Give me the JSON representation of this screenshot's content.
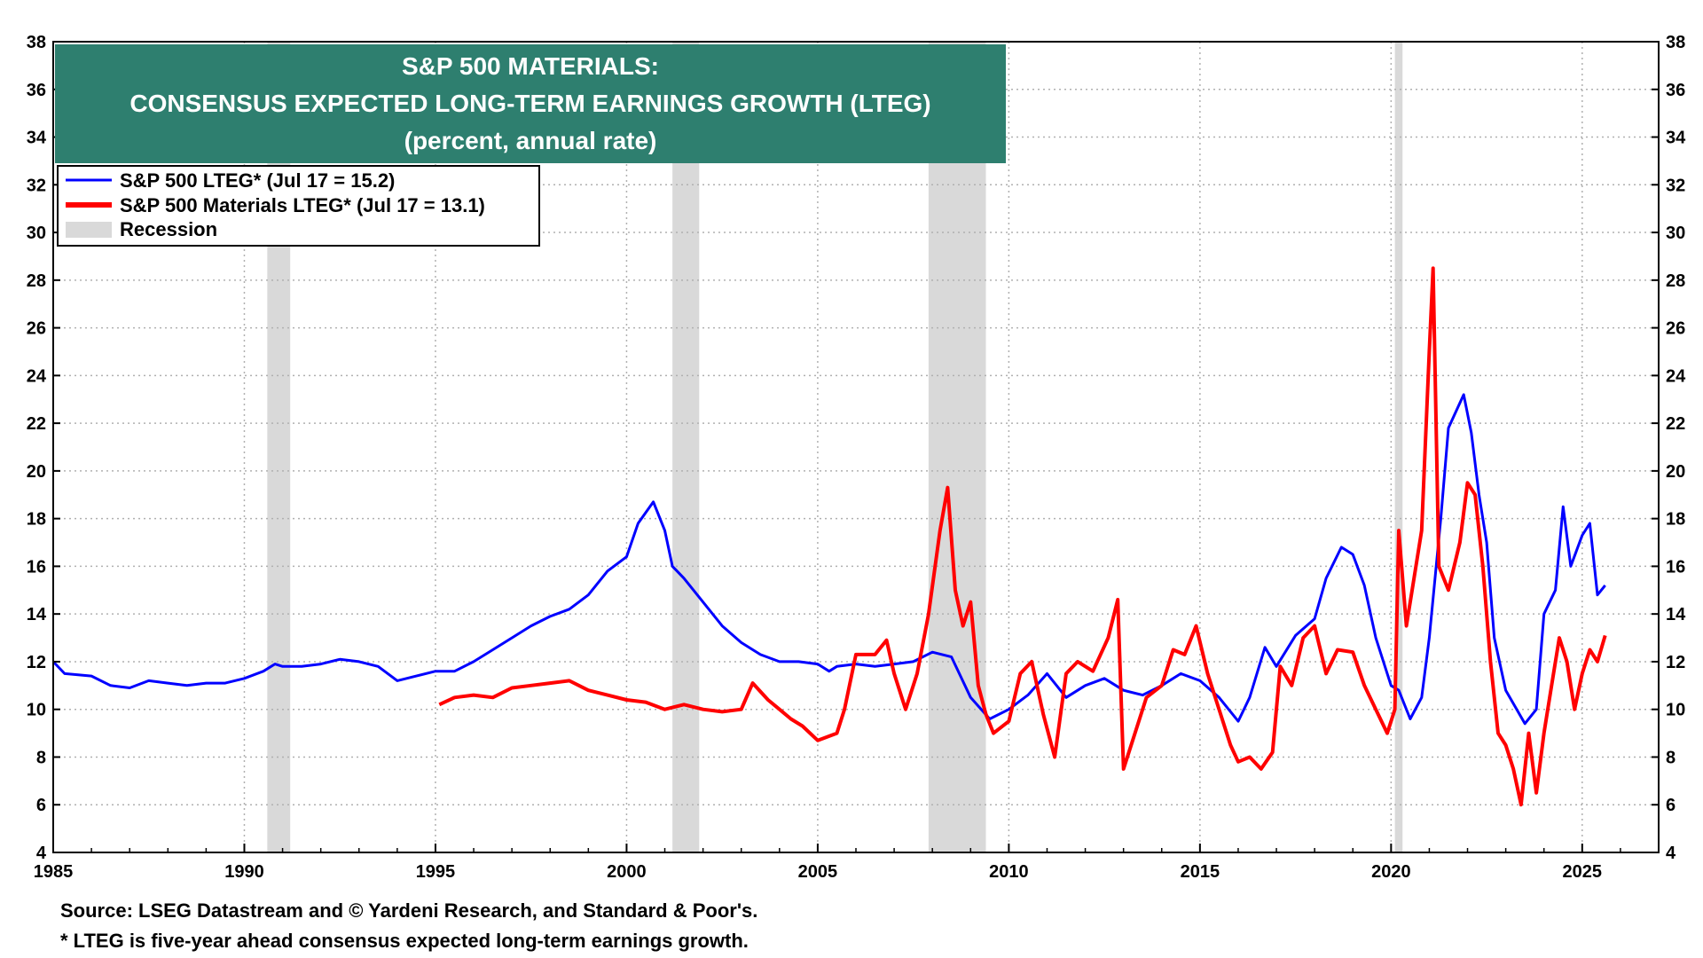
{
  "colors": {
    "title_bg": "#2e7f6f",
    "title_text": "#ffffff",
    "sp500": "#0000ff",
    "materials": "#ff0000",
    "recession": "#d9d9d9",
    "grid": "#b0b0b0"
  },
  "title": {
    "line1": "S&P 500 MATERIALS:",
    "line2": "CONSENSUS EXPECTED LONG-TERM EARNINGS GROWTH (LTEG)",
    "line3": "(percent, annual rate)"
  },
  "legend": {
    "sp500": "S&P 500 LTEG* (Jul 17 = 15.2)",
    "materials": "S&P 500 Materials LTEG* (Jul 17 = 13.1)",
    "recession": "Recession"
  },
  "footer": {
    "source": "Source: LSEG Datastream and © Yardeni Research, and Standard & Poor's.",
    "note": "* LTEG is five-year ahead consensus expected long-term earnings growth."
  },
  "chart_data": {
    "type": "line",
    "xlim": [
      1985,
      2027
    ],
    "ylim": [
      4,
      38
    ],
    "x_ticks": [
      "1985",
      "1990",
      "1995",
      "2000",
      "2005",
      "2010",
      "2015",
      "2020",
      "2025"
    ],
    "y_ticks": [
      "4",
      "6",
      "8",
      "10",
      "12",
      "14",
      "16",
      "18",
      "20",
      "22",
      "24",
      "26",
      "28",
      "30",
      "32",
      "34",
      "36",
      "38"
    ],
    "grid": true,
    "legend_position": "top-left",
    "recessions": [
      [
        1990.6,
        1991.2
      ],
      [
        2001.2,
        2001.9
      ],
      [
        2007.9,
        2009.4
      ],
      [
        2020.1,
        2020.3
      ]
    ],
    "series": [
      {
        "name": "S&P 500 LTEG* (Jul 17 = 15.2)",
        "color": "#0000ff",
        "points": [
          [
            1985.0,
            12.0
          ],
          [
            1985.3,
            11.5
          ],
          [
            1986.0,
            11.4
          ],
          [
            1986.5,
            11.0
          ],
          [
            1987.0,
            10.9
          ],
          [
            1987.5,
            11.2
          ],
          [
            1988.0,
            11.1
          ],
          [
            1988.5,
            11.0
          ],
          [
            1989.0,
            11.1
          ],
          [
            1989.5,
            11.1
          ],
          [
            1990.0,
            11.3
          ],
          [
            1990.5,
            11.6
          ],
          [
            1990.8,
            11.9
          ],
          [
            1991.0,
            11.8
          ],
          [
            1991.5,
            11.8
          ],
          [
            1992.0,
            11.9
          ],
          [
            1992.5,
            12.1
          ],
          [
            1993.0,
            12.0
          ],
          [
            1993.5,
            11.8
          ],
          [
            1994.0,
            11.2
          ],
          [
            1994.5,
            11.4
          ],
          [
            1995.0,
            11.6
          ],
          [
            1995.5,
            11.6
          ],
          [
            1996.0,
            12.0
          ],
          [
            1996.5,
            12.5
          ],
          [
            1997.0,
            13.0
          ],
          [
            1997.5,
            13.5
          ],
          [
            1998.0,
            13.9
          ],
          [
            1998.5,
            14.2
          ],
          [
            1999.0,
            14.8
          ],
          [
            1999.5,
            15.8
          ],
          [
            2000.0,
            16.4
          ],
          [
            2000.3,
            17.8
          ],
          [
            2000.7,
            18.7
          ],
          [
            2001.0,
            17.5
          ],
          [
            2001.2,
            16.0
          ],
          [
            2001.5,
            15.5
          ],
          [
            2002.0,
            14.5
          ],
          [
            2002.5,
            13.5
          ],
          [
            2003.0,
            12.8
          ],
          [
            2003.5,
            12.3
          ],
          [
            2004.0,
            12.0
          ],
          [
            2004.5,
            12.0
          ],
          [
            2005.0,
            11.9
          ],
          [
            2005.3,
            11.6
          ],
          [
            2005.5,
            11.8
          ],
          [
            2006.0,
            11.9
          ],
          [
            2006.5,
            11.8
          ],
          [
            2007.0,
            11.9
          ],
          [
            2007.5,
            12.0
          ],
          [
            2008.0,
            12.4
          ],
          [
            2008.5,
            12.2
          ],
          [
            2009.0,
            10.5
          ],
          [
            2009.5,
            9.6
          ],
          [
            2010.0,
            10.0
          ],
          [
            2010.5,
            10.6
          ],
          [
            2011.0,
            11.5
          ],
          [
            2011.5,
            10.5
          ],
          [
            2012.0,
            11.0
          ],
          [
            2012.5,
            11.3
          ],
          [
            2013.0,
            10.8
          ],
          [
            2013.5,
            10.6
          ],
          [
            2014.0,
            11.0
          ],
          [
            2014.5,
            11.5
          ],
          [
            2015.0,
            11.2
          ],
          [
            2015.5,
            10.5
          ],
          [
            2016.0,
            9.5
          ],
          [
            2016.3,
            10.5
          ],
          [
            2016.7,
            12.6
          ],
          [
            2017.0,
            11.8
          ],
          [
            2017.5,
            13.1
          ],
          [
            2018.0,
            13.8
          ],
          [
            2018.3,
            15.5
          ],
          [
            2018.7,
            16.8
          ],
          [
            2019.0,
            16.5
          ],
          [
            2019.3,
            15.2
          ],
          [
            2019.6,
            13.0
          ],
          [
            2020.0,
            11.0
          ],
          [
            2020.2,
            10.8
          ],
          [
            2020.5,
            9.6
          ],
          [
            2020.8,
            10.5
          ],
          [
            2021.0,
            13.0
          ],
          [
            2021.3,
            18.0
          ],
          [
            2021.5,
            21.8
          ],
          [
            2021.9,
            23.2
          ],
          [
            2022.1,
            21.6
          ],
          [
            2022.3,
            19.0
          ],
          [
            2022.5,
            17.0
          ],
          [
            2022.7,
            13.0
          ],
          [
            2023.0,
            10.8
          ],
          [
            2023.5,
            9.4
          ],
          [
            2023.8,
            10.0
          ],
          [
            2024.0,
            14.0
          ],
          [
            2024.3,
            15.0
          ],
          [
            2024.5,
            18.5
          ],
          [
            2024.7,
            16.0
          ],
          [
            2025.0,
            17.3
          ],
          [
            2025.2,
            17.8
          ],
          [
            2025.4,
            14.8
          ],
          [
            2025.6,
            15.2
          ]
        ]
      },
      {
        "name": "S&P 500 Materials LTEG* (Jul 17 = 13.1)",
        "color": "#ff0000",
        "points": [
          [
            1995.1,
            10.2
          ],
          [
            1995.5,
            10.5
          ],
          [
            1996.0,
            10.6
          ],
          [
            1996.5,
            10.5
          ],
          [
            1997.0,
            10.9
          ],
          [
            1997.5,
            11.0
          ],
          [
            1998.0,
            11.1
          ],
          [
            1998.5,
            11.2
          ],
          [
            1999.0,
            10.8
          ],
          [
            1999.5,
            10.6
          ],
          [
            2000.0,
            10.4
          ],
          [
            2000.5,
            10.3
          ],
          [
            2001.0,
            10.0
          ],
          [
            2001.5,
            10.2
          ],
          [
            2002.0,
            10.0
          ],
          [
            2002.5,
            9.9
          ],
          [
            2003.0,
            10.0
          ],
          [
            2003.3,
            11.1
          ],
          [
            2003.7,
            10.4
          ],
          [
            2004.0,
            10.0
          ],
          [
            2004.3,
            9.6
          ],
          [
            2004.6,
            9.3
          ],
          [
            2005.0,
            8.7
          ],
          [
            2005.5,
            9.0
          ],
          [
            2005.7,
            10.0
          ],
          [
            2006.0,
            12.3
          ],
          [
            2006.5,
            12.3
          ],
          [
            2006.8,
            12.9
          ],
          [
            2007.0,
            11.5
          ],
          [
            2007.3,
            10.0
          ],
          [
            2007.6,
            11.5
          ],
          [
            2007.9,
            14.0
          ],
          [
            2008.2,
            17.5
          ],
          [
            2008.4,
            19.3
          ],
          [
            2008.6,
            15.0
          ],
          [
            2008.8,
            13.5
          ],
          [
            2009.0,
            14.5
          ],
          [
            2009.2,
            11.0
          ],
          [
            2009.4,
            9.8
          ],
          [
            2009.6,
            9.0
          ],
          [
            2010.0,
            9.5
          ],
          [
            2010.3,
            11.5
          ],
          [
            2010.6,
            12.0
          ],
          [
            2010.9,
            9.8
          ],
          [
            2011.2,
            8.0
          ],
          [
            2011.5,
            11.5
          ],
          [
            2011.8,
            12.0
          ],
          [
            2012.2,
            11.6
          ],
          [
            2012.6,
            13.0
          ],
          [
            2012.85,
            14.6
          ],
          [
            2013.0,
            7.5
          ],
          [
            2013.3,
            9.0
          ],
          [
            2013.6,
            10.5
          ],
          [
            2014.0,
            11.0
          ],
          [
            2014.3,
            12.5
          ],
          [
            2014.6,
            12.3
          ],
          [
            2014.9,
            13.5
          ],
          [
            2015.2,
            11.5
          ],
          [
            2015.5,
            10.0
          ],
          [
            2015.8,
            8.5
          ],
          [
            2016.0,
            7.8
          ],
          [
            2016.3,
            8.0
          ],
          [
            2016.6,
            7.5
          ],
          [
            2016.9,
            8.2
          ],
          [
            2017.1,
            11.8
          ],
          [
            2017.4,
            11.0
          ],
          [
            2017.7,
            13.0
          ],
          [
            2018.0,
            13.5
          ],
          [
            2018.3,
            11.5
          ],
          [
            2018.6,
            12.5
          ],
          [
            2019.0,
            12.4
          ],
          [
            2019.3,
            11.0
          ],
          [
            2019.6,
            10.0
          ],
          [
            2019.9,
            9.0
          ],
          [
            2020.1,
            10.0
          ],
          [
            2020.2,
            17.5
          ],
          [
            2020.4,
            13.5
          ],
          [
            2020.6,
            15.5
          ],
          [
            2020.8,
            17.5
          ],
          [
            2021.0,
            25.0
          ],
          [
            2021.1,
            28.5
          ],
          [
            2021.25,
            16.0
          ],
          [
            2021.5,
            15.0
          ],
          [
            2021.8,
            17.0
          ],
          [
            2022.0,
            19.5
          ],
          [
            2022.2,
            19.0
          ],
          [
            2022.4,
            16.0
          ],
          [
            2022.6,
            12.0
          ],
          [
            2022.8,
            9.0
          ],
          [
            2023.0,
            8.5
          ],
          [
            2023.2,
            7.5
          ],
          [
            2023.4,
            6.0
          ],
          [
            2023.6,
            9.0
          ],
          [
            2023.8,
            6.5
          ],
          [
            2024.0,
            9.0
          ],
          [
            2024.2,
            11.0
          ],
          [
            2024.4,
            13.0
          ],
          [
            2024.6,
            12.0
          ],
          [
            2024.8,
            10.0
          ],
          [
            2025.0,
            11.5
          ],
          [
            2025.2,
            12.5
          ],
          [
            2025.4,
            12.0
          ],
          [
            2025.6,
            13.1
          ]
        ]
      }
    ]
  }
}
